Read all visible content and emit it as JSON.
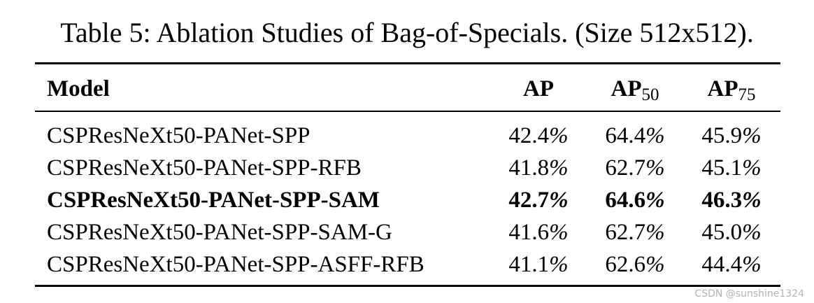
{
  "caption": "Table 5: Ablation Studies of Bag-of-Specials. (Size 512x512).",
  "headers": {
    "model": "Model",
    "ap": "AP",
    "ap50": {
      "base": "AP",
      "sub": "50"
    },
    "ap75": {
      "base": "AP",
      "sub": "75"
    }
  },
  "rows": [
    {
      "model": "CSPResNeXt50-PANet-SPP",
      "ap": "42.4",
      "ap50": "64.4",
      "ap75": "45.9",
      "bold": false
    },
    {
      "model": "CSPResNeXt50-PANet-SPP-RFB",
      "ap": "41.8",
      "ap50": "62.7",
      "ap75": "45.1",
      "bold": false
    },
    {
      "model": "CSPResNeXt50-PANet-SPP-SAM",
      "ap": "42.7",
      "ap50": "64.6",
      "ap75": "46.3",
      "bold": true
    },
    {
      "model": "CSPResNeXt50-PANet-SPP-SAM-G",
      "ap": "41.6",
      "ap50": "62.7",
      "ap75": "45.0",
      "bold": false
    },
    {
      "model": "CSPResNeXt50-PANet-SPP-ASFF-RFB",
      "ap": "41.1",
      "ap50": "62.6",
      "ap75": "44.4",
      "bold": false
    }
  ],
  "percent_sign": "%",
  "watermark": "CSDN @sunshine1324"
}
